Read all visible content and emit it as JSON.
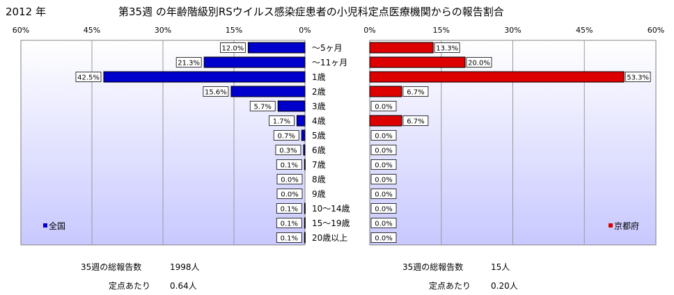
{
  "year_label": "2012 年",
  "title": "第35週 の年齢階級別RSウイルス感染症患者の小児科定点医療機関からの報告割合",
  "chart_data": {
    "type": "bar",
    "orientation": "horizontal",
    "categories": [
      "～5ヶ月",
      "～11ヶ月",
      "1歳",
      "2歳",
      "3歳",
      "4歳",
      "5歳",
      "6歳",
      "7歳",
      "8歳",
      "9歳",
      "10～14歳",
      "15～19歳",
      "20歳以上"
    ],
    "x_ticks": [
      "60%",
      "45%",
      "30%",
      "15%",
      "0%"
    ],
    "x_ticks_right": [
      "0%",
      "15%",
      "30%",
      "45%",
      "60%"
    ],
    "xlim": [
      0,
      60
    ],
    "grid": true,
    "series": [
      {
        "name": "全国",
        "color": "#0000cc",
        "values": [
          12.0,
          21.3,
          42.5,
          15.6,
          5.7,
          1.7,
          0.7,
          0.3,
          0.1,
          0.0,
          0.0,
          0.1,
          0.1,
          0.1
        ],
        "labels": [
          "12.0%",
          "21.3%",
          "42.5%",
          "15.6%",
          "5.7%",
          "1.7%",
          "0.7%",
          "0.3%",
          "0.1%",
          "0.0%",
          "0.0%",
          "0.1%",
          "0.1%",
          "0.1%"
        ],
        "legend_position": "bottom-left"
      },
      {
        "name": "京都府",
        "color": "#dd0000",
        "values": [
          13.3,
          20.0,
          53.3,
          6.7,
          0.0,
          6.7,
          0.0,
          0.0,
          0.0,
          0.0,
          0.0,
          0.0,
          0.0,
          0.0
        ],
        "labels": [
          "13.3%",
          "20.0%",
          "53.3%",
          "6.7%",
          "0.0%",
          "6.7%",
          "0.0%",
          "0.0%",
          "0.0%",
          "0.0%",
          "0.0%",
          "0.0%",
          "0.0%",
          "0.0%"
        ],
        "legend_position": "bottom-right"
      }
    ]
  },
  "footer": {
    "national": {
      "total_label": "35週の総報告数",
      "total_value": "1998人",
      "per_label": "定点あたり",
      "per_value": "0.64人"
    },
    "kyoto": {
      "total_label": "35週の総報告数",
      "total_value": "15人",
      "per_label": "定点あたり",
      "per_value": "0.20人"
    }
  },
  "colors": {
    "plot_bg_top": "#ffffff",
    "plot_bg_bottom": "#c8c8ff",
    "grid": "#999999",
    "national": "#0000cc",
    "kyoto": "#dd0000"
  }
}
